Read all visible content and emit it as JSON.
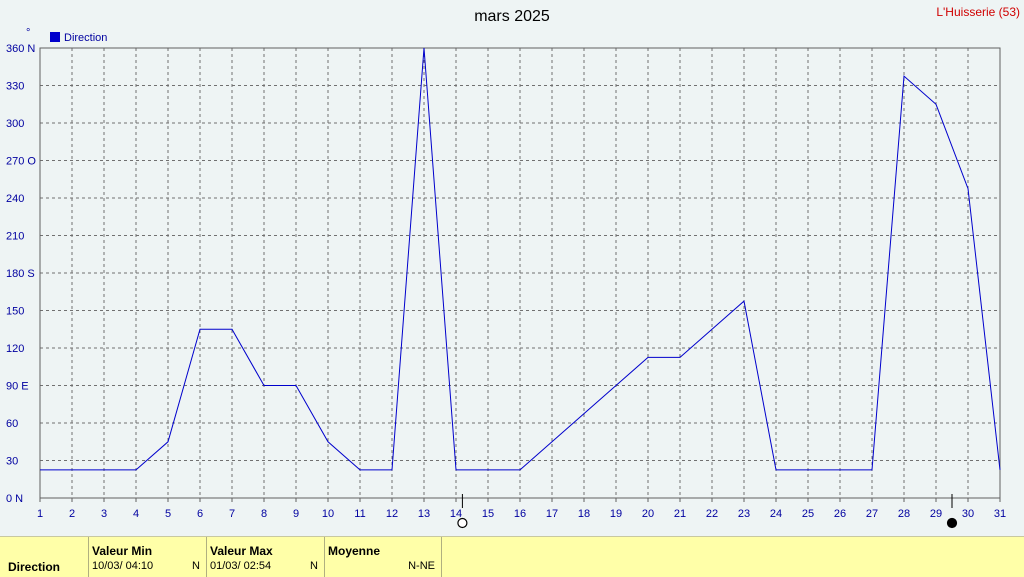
{
  "header": {
    "title": "mars 2025",
    "station": "L'Huisserie (53)"
  },
  "legend": {
    "label": "Direction",
    "unit_symbol": "°",
    "color": "#0000cc"
  },
  "chart_data": {
    "type": "line",
    "title": "mars 2025",
    "xlabel": "",
    "ylabel": "°",
    "xlim": [
      1,
      31
    ],
    "ylim": [
      0,
      360
    ],
    "grid": true,
    "legend_position": "top-left",
    "x_ticks": [
      "1",
      "2",
      "3",
      "4",
      "5",
      "6",
      "7",
      "8",
      "9",
      "10",
      "11",
      "12",
      "13",
      "14",
      "15",
      "16",
      "17",
      "18",
      "19",
      "20",
      "21",
      "22",
      "23",
      "24",
      "25",
      "26",
      "27",
      "28",
      "29",
      "30",
      "31"
    ],
    "y_ticks": [
      {
        "value": 0,
        "label": "0   N"
      },
      {
        "value": 30,
        "label": "30"
      },
      {
        "value": 60,
        "label": "60"
      },
      {
        "value": 90,
        "label": "90   E"
      },
      {
        "value": 120,
        "label": "120"
      },
      {
        "value": 150,
        "label": "150"
      },
      {
        "value": 180,
        "label": "180 S"
      },
      {
        "value": 210,
        "label": "210"
      },
      {
        "value": 240,
        "label": "240"
      },
      {
        "value": 270,
        "label": "270 O"
      },
      {
        "value": 300,
        "label": "300"
      },
      {
        "value": 330,
        "label": "330"
      },
      {
        "value": 360,
        "label": "360 N"
      }
    ],
    "series": [
      {
        "name": "Direction",
        "color": "#0000cc",
        "x": [
          1,
          2,
          3,
          4,
          5,
          6,
          7,
          8,
          9,
          10,
          11,
          12,
          13,
          14,
          15,
          16,
          17,
          18,
          19,
          20,
          21,
          22,
          23,
          24,
          25,
          26,
          27,
          28,
          29,
          30,
          31
        ],
        "values": [
          22.5,
          22.5,
          22.5,
          22.5,
          45,
          135,
          135,
          90,
          90,
          45,
          22.5,
          22.5,
          360,
          22.5,
          22.5,
          22.5,
          45,
          67.5,
          90,
          112.5,
          112.5,
          135,
          157.5,
          22.5,
          22.5,
          22.5,
          22.5,
          337.5,
          315,
          247.5,
          22.5
        ]
      }
    ],
    "moon_phases": [
      {
        "x": 14.2,
        "phase": "full"
      },
      {
        "x": 29.5,
        "phase": "new"
      }
    ]
  },
  "stats": {
    "row_label": "Direction",
    "min": {
      "header": "Valeur Min",
      "datetime": "10/03/  04:10",
      "value": "N"
    },
    "max": {
      "header": "Valeur Max",
      "datetime": "01/03/  02:54",
      "value": "N"
    },
    "avg": {
      "header": "Moyenne",
      "value": "N-NE"
    }
  }
}
